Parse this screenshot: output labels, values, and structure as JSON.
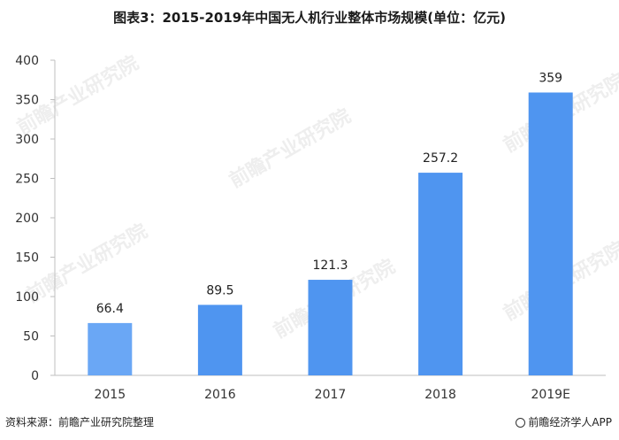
{
  "title": "图表3：2015-2019年中国无人机行业整体市场规模(单位：亿元)",
  "source": "资料来源：前瞻产业研究院整理",
  "brand": "前瞻经济学人APP",
  "watermark": "前瞻产业研究院",
  "colors": {
    "bar": "#4f95f0",
    "bar_light": "#6aa7f5",
    "axis": "#bfbfbf"
  },
  "chart_data": {
    "type": "bar",
    "categories": [
      "2015",
      "2016",
      "2017",
      "2018",
      "2019E"
    ],
    "values": [
      66.4,
      89.5,
      121.3,
      257.2,
      359
    ],
    "value_labels": [
      "66.4",
      "89.5",
      "121.3",
      "257.2",
      "359"
    ],
    "yticks": [
      "0",
      "50",
      "100",
      "150",
      "200",
      "250",
      "300",
      "350",
      "400"
    ],
    "ylim": [
      0,
      400
    ],
    "grid": false
  }
}
